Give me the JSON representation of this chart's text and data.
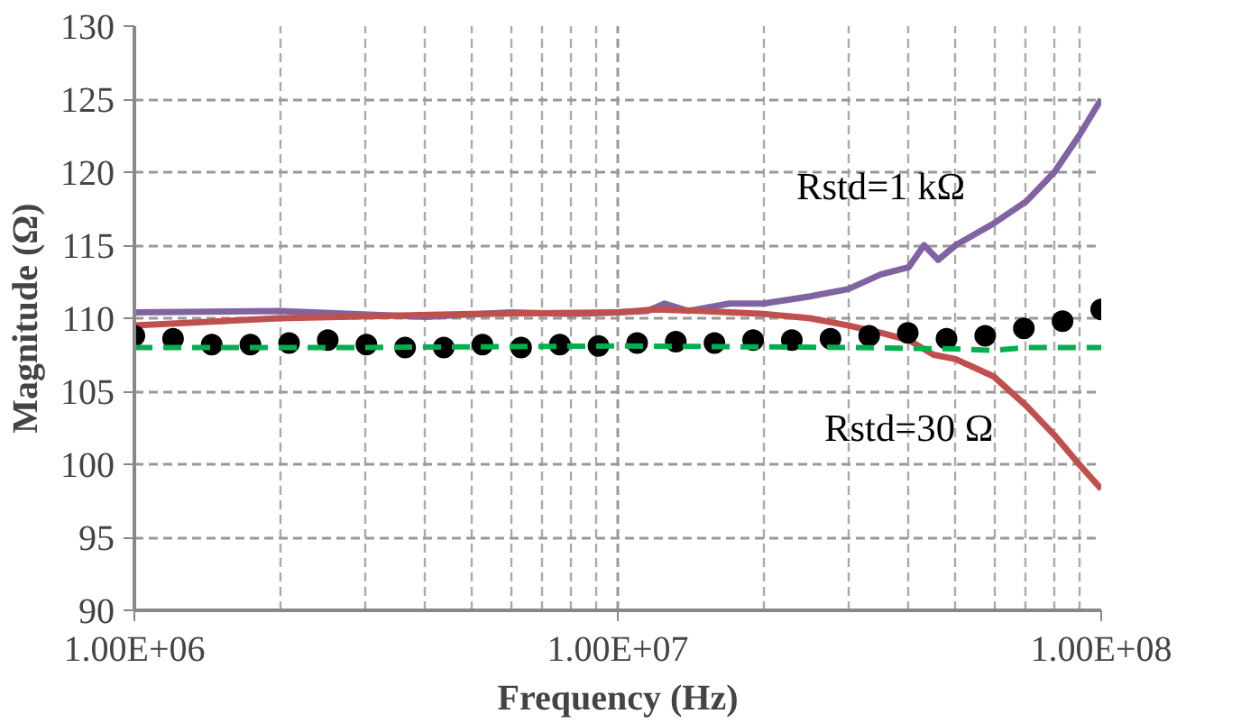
{
  "chart_data": {
    "type": "line",
    "xlabel": "Frequency (Hz)",
    "ylabel": "Magnitude (Ω)",
    "log": "x",
    "grid": true,
    "xlim": [
      1000000,
      100000000
    ],
    "xticks": [
      {
        "value": 1000000,
        "label": "1.00E+06"
      },
      {
        "value": 10000000,
        "label": "1.00E+07"
      },
      {
        "value": 100000000,
        "label": "1.00E+08"
      }
    ],
    "ylim": [
      90,
      130
    ],
    "yticks": [
      90,
      95,
      100,
      105,
      110,
      115,
      120,
      125,
      130
    ],
    "series": [
      {
        "name": "Rstd=1 kΩ",
        "color": "#8064a2",
        "line_style": "solid",
        "marker": "none",
        "x": [
          1000000,
          2000000,
          4000000,
          6000000,
          8000000,
          10000000,
          11500000,
          12500000,
          14000000,
          17000000,
          20000000,
          25000000,
          30000000,
          35000000,
          40000000,
          43000000,
          46000000,
          50000000,
          60000000,
          70000000,
          80000000,
          90000000,
          100000000
        ],
        "values": [
          110.4,
          110.5,
          110.1,
          110.4,
          110.3,
          110.4,
          110.5,
          111.0,
          110.5,
          111.0,
          111.0,
          111.5,
          112.0,
          113.0,
          113.5,
          115.0,
          114.0,
          115.0,
          116.5,
          118.0,
          120.0,
          122.5,
          125.0
        ]
      },
      {
        "name": "Rstd=30 Ω",
        "color": "#c0504d",
        "line_style": "solid",
        "marker": "none",
        "x": [
          1000000,
          2000000,
          5000000,
          10000000,
          12000000,
          15000000,
          20000000,
          25000000,
          30000000,
          35000000,
          40000000,
          45000000,
          50000000,
          60000000,
          70000000,
          80000000,
          90000000,
          100000000
        ],
        "values": [
          109.5,
          110.0,
          110.3,
          110.4,
          110.6,
          110.5,
          110.3,
          110.0,
          109.5,
          109.0,
          108.5,
          107.5,
          107.2,
          106.0,
          104.0,
          102.0,
          100.0,
          98.3
        ]
      },
      {
        "color": "#000000",
        "type": "scatter",
        "marker": "circle",
        "x": [
          1000000,
          1202264,
          1445440,
          1737801,
          2089296,
          2511886,
          3019952,
          3630781,
          4365158,
          5248075,
          6309573,
          7585776,
          9120108,
          10964782,
          13182567,
          15848932,
          19054607,
          22908677,
          27542287,
          33113112,
          39810717,
          47863009,
          57543994,
          69183097,
          83176377,
          100000000
        ],
        "values": [
          108.8,
          108.6,
          108.2,
          108.2,
          108.3,
          108.5,
          108.2,
          108.0,
          108.0,
          108.2,
          108.0,
          108.2,
          108.1,
          108.3,
          108.4,
          108.3,
          108.5,
          108.5,
          108.6,
          108.8,
          109.0,
          108.6,
          108.8,
          109.3,
          109.8,
          110.6
        ]
      },
      {
        "color": "#00b050",
        "line_style": "dashed",
        "marker": "none",
        "x": [
          1000000,
          3000000,
          10000000,
          30000000,
          50000000,
          60000000,
          70000000,
          100000000
        ],
        "values": [
          108.0,
          108.0,
          108.1,
          108.0,
          107.9,
          107.8,
          108.0,
          108.0
        ]
      }
    ]
  }
}
